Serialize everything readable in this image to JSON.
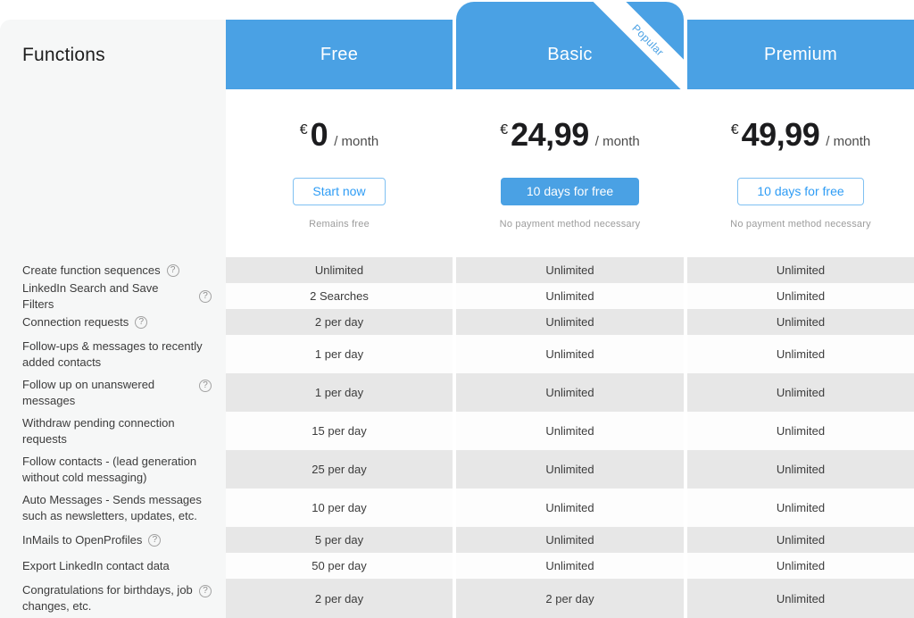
{
  "title": "Functions",
  "icons": {
    "help": "?"
  },
  "colors": {
    "accent_blue": "#4aa1e4",
    "row_gray": "#e7e7e7",
    "panel_gray": "#f6f7f7",
    "button_text_blue": "#2e9cf5"
  },
  "plans": [
    {
      "name": "Free",
      "currency": "€",
      "price": "0",
      "period": "/ month",
      "button_label": "Start now",
      "note": "Remains free",
      "values": [
        "Unlimited",
        "2 Searches",
        "2 per day",
        "1 per day",
        "1 per day",
        "15 per day",
        "25 per day",
        "10 per day",
        "5 per day",
        "50 per day",
        "2 per day"
      ]
    },
    {
      "name": "Basic",
      "ribbon": "Popular",
      "currency": "€",
      "price": "24,99",
      "period": "/ month",
      "button_label": "10 days for free",
      "note": "No payment method necessary",
      "values": [
        "Unlimited",
        "Unlimited",
        "Unlimited",
        "Unlimited",
        "Unlimited",
        "Unlimited",
        "Unlimited",
        "Unlimited",
        "Unlimited",
        "Unlimited",
        "2 per day"
      ]
    },
    {
      "name": "Premium",
      "currency": "€",
      "price": "49,99",
      "period": "/ month",
      "button_label": "10 days for free",
      "note": "No payment method necessary",
      "values": [
        "Unlimited",
        "Unlimited",
        "Unlimited",
        "Unlimited",
        "Unlimited",
        "Unlimited",
        "Unlimited",
        "Unlimited",
        "Unlimited",
        "Unlimited",
        "Unlimited"
      ]
    }
  ],
  "features": [
    {
      "label": "Create function sequences"
    },
    {
      "label": "LinkedIn Search and Save Filters"
    },
    {
      "label": "Connection requests"
    },
    {
      "label": "Follow-ups & messages to recently added contacts"
    },
    {
      "label": "Follow up on unanswered messages"
    },
    {
      "label": "Withdraw pending connection requests"
    },
    {
      "label": "Follow contacts - (lead generation without cold messaging)"
    },
    {
      "label": "Auto Messages - Sends messages such as newsletters, updates, etc."
    },
    {
      "label": "InMails to OpenProfiles"
    },
    {
      "label": "Export LinkedIn contact data"
    },
    {
      "label": "Congratulations for birthdays, job changes, etc."
    }
  ]
}
